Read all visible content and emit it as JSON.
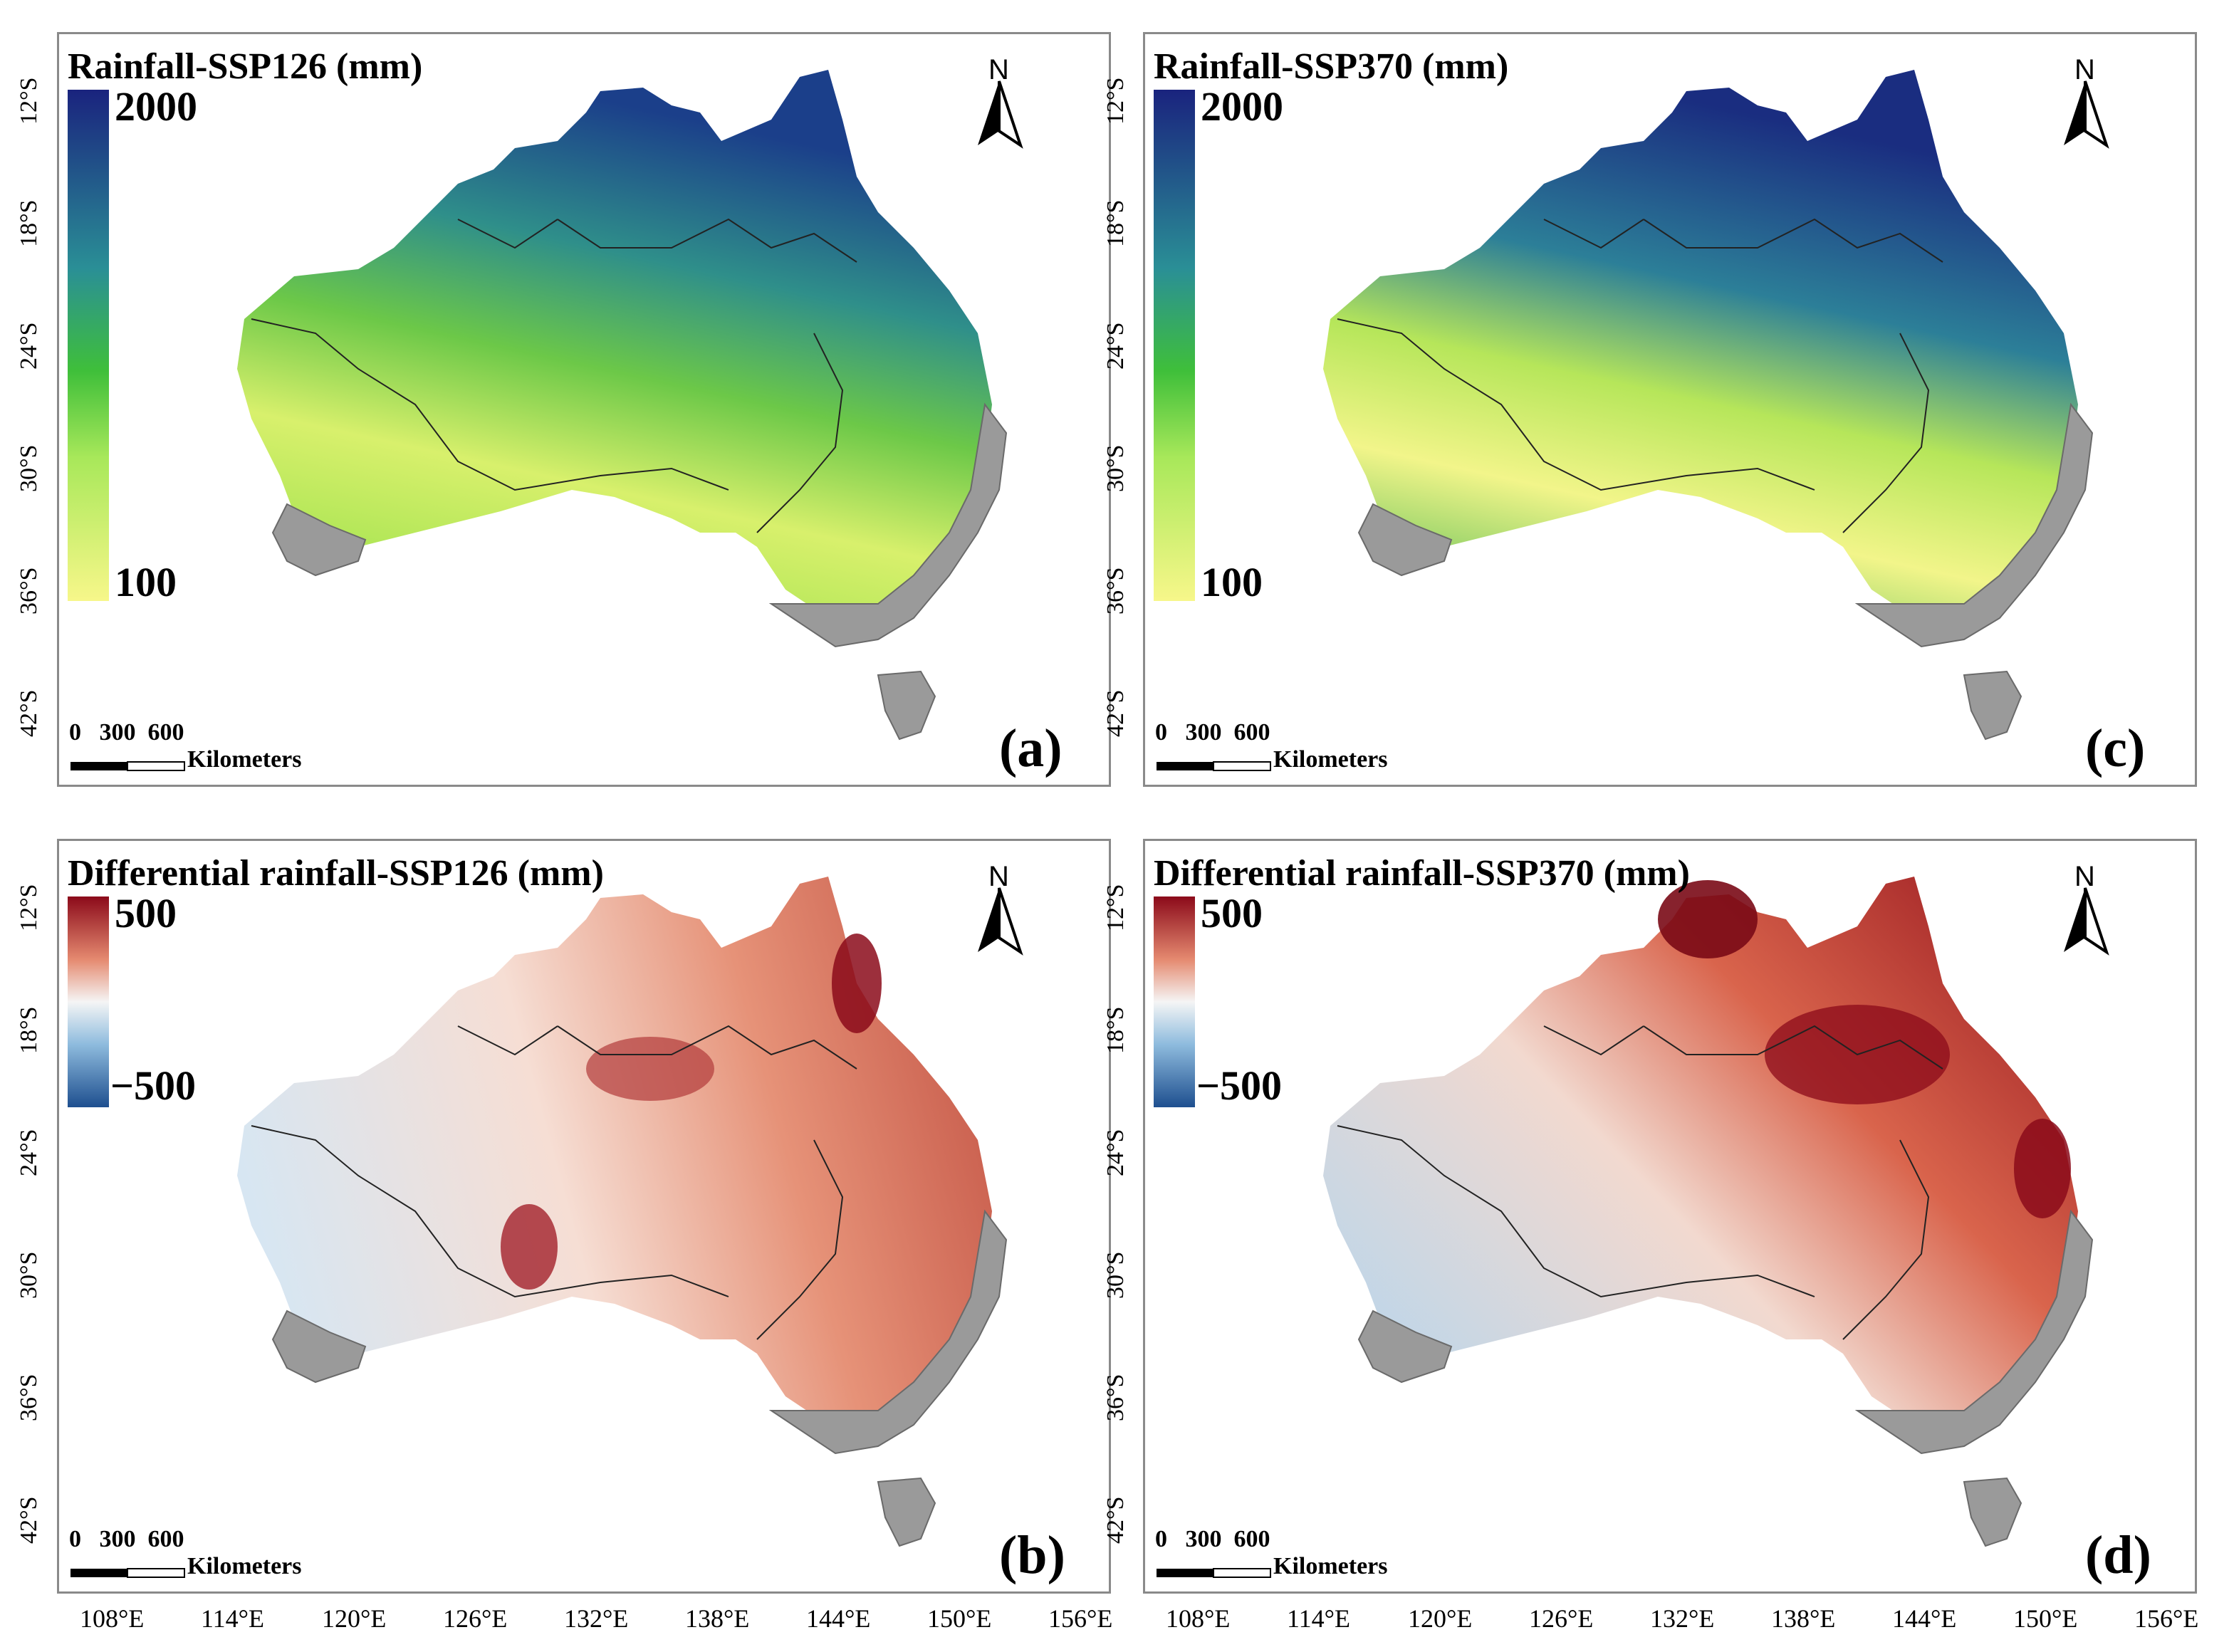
{
  "panels": {
    "a": {
      "title": "Rainfall-SSP126 (mm)",
      "cb_max": "2000",
      "cb_min": "100",
      "label": "(a)"
    },
    "c": {
      "title": "Rainfall-SSP370 (mm)",
      "cb_max": "2000",
      "cb_min": "100",
      "label": "(c)"
    },
    "b": {
      "title": "Differential rainfall-SSP126 (mm)",
      "cb_max": "500",
      "cb_min": "−500",
      "label": "(b)"
    },
    "d": {
      "title": "Differential rainfall-SSP370 (mm)",
      "cb_max": "500",
      "cb_min": "−500",
      "label": "(d)"
    }
  },
  "north": "N",
  "scale": {
    "ticks": "0   300  600",
    "unit": "Kilometers"
  },
  "lat_ticks": [
    "12°S",
    "18°S",
    "24°S",
    "30°S",
    "36°S",
    "42°S"
  ],
  "lon_ticks": [
    "108°E",
    "114°E",
    "120°E",
    "126°E",
    "132°E",
    "138°E",
    "144°E",
    "150°E",
    "156°E"
  ],
  "colors": {
    "rain_low": "#f7f78a",
    "rain_mid": "#3fbf3a",
    "rain_teal": "#2a8f96",
    "rain_high": "#1a237e",
    "diff_pos": "#8b0a1a",
    "diff_zero": "#f5f5f5",
    "diff_neg": "#1e4f8f",
    "hillshade": "#9a9a9a"
  }
}
